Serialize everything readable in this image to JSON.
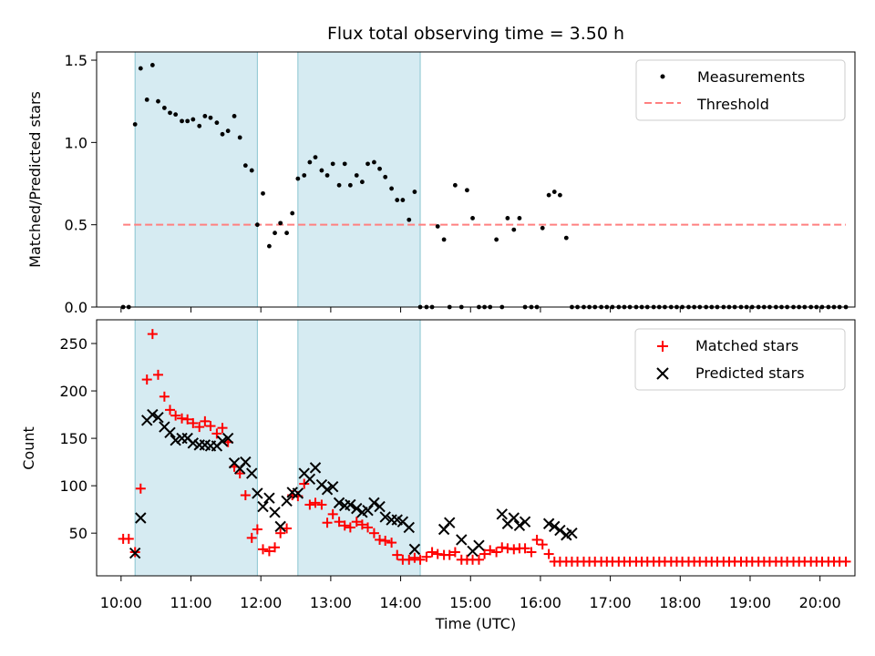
{
  "chart_data": [
    {
      "type": "scatter",
      "title": "Flux total observing time = 3.50 h",
      "ylabel": "Matched/Predicted stars",
      "ylim": [
        0,
        1.55
      ],
      "yticks": [
        "0.0",
        "0.5",
        "1.0",
        "1.5"
      ],
      "xticks": [
        "10:00",
        "11:00",
        "12:00",
        "13:00",
        "14:00",
        "15:00",
        "16:00",
        "17:00",
        "18:00",
        "19:00",
        "20:00"
      ],
      "xlim_hours": [
        9.65,
        20.5
      ],
      "legend_position": "top-right",
      "shaded_intervals_hours": [
        [
          10.2,
          11.95
        ],
        [
          12.53,
          14.28
        ]
      ],
      "shaded_color": "#add8e6",
      "series": [
        {
          "name": "Measurements",
          "marker": "dot",
          "color": "#000000",
          "x": [
            10.03,
            10.11,
            10.2,
            10.28,
            10.37,
            10.45,
            10.53,
            10.62,
            10.7,
            10.78,
            10.87,
            10.95,
            11.03,
            11.12,
            11.2,
            11.28,
            11.37,
            11.45,
            11.53,
            11.62,
            11.7,
            11.78,
            11.87,
            11.95,
            12.03,
            12.12,
            12.2,
            12.28,
            12.37,
            12.45,
            12.53,
            12.62,
            12.7,
            12.78,
            12.87,
            12.95,
            13.03,
            13.12,
            13.2,
            13.28,
            13.37,
            13.45,
            13.53,
            13.62,
            13.7,
            13.78,
            13.87,
            13.95,
            14.03,
            14.12,
            14.2,
            14.28,
            14.37,
            14.45,
            14.53,
            14.62,
            14.7,
            14.78,
            14.87,
            14.95,
            15.03,
            15.12,
            15.2,
            15.28,
            15.37,
            15.45,
            15.53,
            15.62,
            15.7,
            15.78,
            15.87,
            15.95,
            16.03,
            16.12,
            16.2,
            16.28,
            16.37,
            16.45,
            16.53,
            16.62,
            16.7,
            16.78,
            16.87,
            16.95,
            17.03,
            17.12,
            17.2,
            17.28,
            17.37,
            17.45,
            17.53,
            17.62,
            17.7,
            17.78,
            17.87,
            17.95,
            18.03,
            18.12,
            18.2,
            18.28,
            18.37,
            18.45,
            18.53,
            18.62,
            18.7,
            18.78,
            18.87,
            18.95,
            19.03,
            19.12,
            19.2,
            19.28,
            19.37,
            19.45,
            19.53,
            19.62,
            19.7,
            19.78,
            19.87,
            19.95,
            20.03,
            20.12,
            20.2,
            20.28,
            20.37
          ],
          "y": [
            0,
            0,
            1.11,
            1.45,
            1.26,
            1.47,
            1.25,
            1.21,
            1.18,
            1.17,
            1.13,
            1.13,
            1.14,
            1.1,
            1.16,
            1.15,
            1.12,
            1.05,
            1.07,
            1.16,
            1.03,
            0.86,
            0.83,
            0.5,
            0.69,
            0.37,
            0.45,
            0.51,
            0.45,
            0.57,
            0.78,
            0.8,
            0.88,
            0.91,
            0.83,
            0.8,
            0.87,
            0.74,
            0.87,
            0.74,
            0.8,
            0.76,
            0.87,
            0.88,
            0.84,
            0.79,
            0.72,
            0.65,
            0.65,
            0.53,
            0.7,
            0,
            0,
            0,
            0.49,
            0.41,
            0,
            0.74,
            0,
            0.71,
            0.54,
            0,
            0,
            0,
            0.41,
            0,
            0.54,
            0.47,
            0.54,
            0,
            0,
            0,
            0.48,
            0.68,
            0.7,
            0.68,
            0.42,
            0,
            0,
            0,
            0,
            0,
            0,
            0,
            0,
            0,
            0,
            0,
            0,
            0,
            0,
            0,
            0,
            0,
            0,
            0,
            0,
            0,
            0,
            0,
            0,
            0,
            0,
            0,
            0,
            0,
            0,
            0,
            0,
            0,
            0,
            0,
            0,
            0,
            0,
            0,
            0,
            0,
            0,
            0,
            0,
            0,
            0,
            0,
            0
          ]
        },
        {
          "name": "Threshold",
          "marker": "dashed-line",
          "color": "#ff8080",
          "x": [
            10.03,
            20.37
          ],
          "y": [
            0.5,
            0.5
          ]
        }
      ]
    },
    {
      "type": "scatter",
      "xlabel": "Time (UTC)",
      "ylabel": "Count",
      "ylim": [
        5,
        275
      ],
      "yticks": [
        "50",
        "100",
        "150",
        "200",
        "250"
      ],
      "xticks": [
        "10:00",
        "11:00",
        "12:00",
        "13:00",
        "14:00",
        "15:00",
        "16:00",
        "17:00",
        "18:00",
        "19:00",
        "20:00"
      ],
      "xlim_hours": [
        9.65,
        20.5
      ],
      "legend_position": "top-right",
      "shaded_intervals_hours": [
        [
          10.2,
          11.95
        ],
        [
          12.53,
          14.28
        ]
      ],
      "shaded_color": "#add8e6",
      "series": [
        {
          "name": "Matched stars",
          "marker": "plus",
          "color": "#ff0000",
          "x": [
            10.03,
            10.11,
            10.2,
            10.28,
            10.37,
            10.45,
            10.53,
            10.62,
            10.7,
            10.78,
            10.87,
            10.95,
            11.03,
            11.12,
            11.2,
            11.28,
            11.37,
            11.45,
            11.53,
            11.62,
            11.7,
            11.78,
            11.87,
            11.95,
            12.03,
            12.12,
            12.2,
            12.28,
            12.37,
            12.45,
            12.53,
            12.62,
            12.7,
            12.78,
            12.87,
            12.95,
            13.03,
            13.12,
            13.2,
            13.28,
            13.37,
            13.45,
            13.53,
            13.62,
            13.7,
            13.78,
            13.87,
            13.95,
            14.03,
            14.12,
            14.2,
            14.28,
            14.37,
            14.45,
            14.53,
            14.62,
            14.7,
            14.78,
            14.87,
            14.95,
            15.03,
            15.12,
            15.2,
            15.28,
            15.37,
            15.45,
            15.53,
            15.62,
            15.7,
            15.78,
            15.87,
            15.95,
            16.03,
            16.12,
            16.2,
            16.28,
            16.37,
            16.45,
            16.53,
            16.62,
            16.7,
            16.78,
            16.87,
            16.95,
            17.03,
            17.12,
            17.2,
            17.28,
            17.37,
            17.45,
            17.53,
            17.62,
            17.7,
            17.78,
            17.87,
            17.95,
            18.03,
            18.12,
            18.2,
            18.28,
            18.37,
            18.45,
            18.53,
            18.62,
            18.7,
            18.78,
            18.87,
            18.95,
            19.03,
            19.12,
            19.2,
            19.28,
            19.37,
            19.45,
            19.53,
            19.62,
            19.7,
            19.78,
            19.87,
            19.95,
            20.03,
            20.12,
            20.2,
            20.28,
            20.37
          ],
          "y": [
            44,
            44,
            30,
            97,
            212,
            260,
            217,
            194,
            180,
            174,
            171,
            170,
            166,
            162,
            168,
            163,
            155,
            161,
            146,
            120,
            113,
            90,
            45,
            54,
            33,
            31,
            35,
            50,
            55,
            90,
            89,
            102,
            80,
            82,
            80,
            61,
            70,
            62,
            58,
            56,
            62,
            59,
            56,
            50,
            43,
            42,
            40,
            27,
            22,
            22,
            24,
            22,
            25,
            30,
            28,
            27,
            27,
            30,
            22,
            22,
            22,
            22,
            28,
            32,
            30,
            35,
            34,
            33,
            34,
            34,
            30,
            43,
            38,
            28,
            20,
            20,
            20,
            20,
            20,
            20,
            20,
            20,
            20,
            20,
            20,
            20,
            20,
            20,
            20,
            20,
            20,
            20,
            20,
            20,
            20,
            20,
            20,
            20,
            20,
            20,
            20,
            20,
            20,
            20,
            20,
            20,
            20,
            20,
            20,
            20,
            20,
            20,
            20,
            20,
            20,
            20,
            20,
            20,
            20,
            20,
            20,
            20,
            20,
            20,
            20
          ]
        },
        {
          "name": "Predicted stars",
          "marker": "x",
          "color": "#000000",
          "x": [
            10.2,
            10.28,
            10.37,
            10.45,
            10.53,
            10.62,
            10.7,
            10.78,
            10.87,
            10.95,
            11.03,
            11.12,
            11.2,
            11.28,
            11.37,
            11.45,
            11.53,
            11.62,
            11.7,
            11.78,
            11.87,
            11.95,
            12.03,
            12.12,
            12.2,
            12.28,
            12.37,
            12.45,
            12.53,
            12.62,
            12.7,
            12.78,
            12.87,
            12.95,
            13.03,
            13.12,
            13.2,
            13.28,
            13.37,
            13.45,
            13.53,
            13.62,
            13.7,
            13.78,
            13.87,
            13.95,
            14.03,
            14.12,
            14.2,
            14.62,
            14.7,
            14.87,
            15.03,
            15.12,
            15.45,
            15.53,
            15.62,
            15.7,
            15.78,
            16.12,
            16.2,
            16.28,
            16.37,
            16.45
          ],
          "y": [
            29,
            66,
            169,
            175,
            172,
            162,
            156,
            148,
            150,
            150,
            145,
            143,
            143,
            142,
            142,
            147,
            150,
            124,
            118,
            125,
            113,
            92,
            78,
            87,
            72,
            57,
            84,
            93,
            92,
            113,
            107,
            119,
            101,
            96,
            99,
            82,
            79,
            80,
            76,
            72,
            74,
            82,
            78,
            67,
            64,
            64,
            62,
            56,
            33,
            54,
            61,
            43,
            31,
            37,
            70,
            60,
            66,
            58,
            62,
            60,
            57,
            53,
            48,
            50
          ]
        }
      ]
    }
  ]
}
